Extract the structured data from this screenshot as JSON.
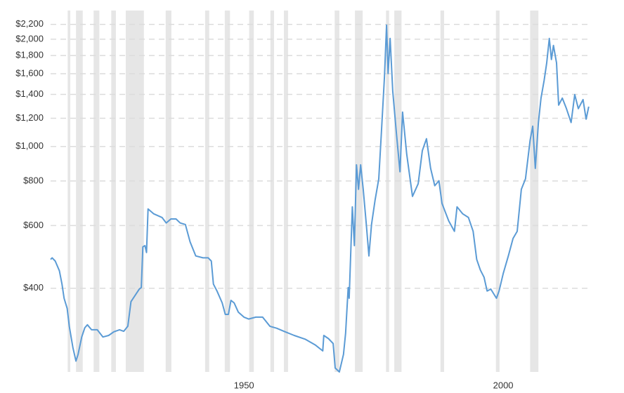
{
  "chart_data": {
    "type": "line",
    "log_scale_y": true,
    "grid": true,
    "color": "#5b9bd5",
    "recession_color": "#e6e6e6",
    "xlim": [
      1915.2,
      2019.3
    ],
    "xticks": [
      1950,
      2000
    ],
    "ylim": [
      233,
      2300
    ],
    "yticks": [
      {
        "value": 400,
        "label": "$400"
      },
      {
        "value": 600,
        "label": "$600"
      },
      {
        "value": 800,
        "label": "$800"
      },
      {
        "value": 1000,
        "label": "$1,000"
      },
      {
        "value": 1200,
        "label": "$1,200"
      },
      {
        "value": 1400,
        "label": "$1,400"
      },
      {
        "value": 1600,
        "label": "$1,600"
      },
      {
        "value": 1800,
        "label": "$1,800"
      },
      {
        "value": 2000,
        "label": "$2,000"
      },
      {
        "value": 2200,
        "label": "$2,200"
      }
    ],
    "recessions": [
      [
        1918.5,
        1919.0
      ],
      [
        1920.1,
        1921.4
      ],
      [
        1923.5,
        1924.6
      ],
      [
        1926.9,
        1927.8
      ],
      [
        1929.7,
        1933.2
      ],
      [
        1937.4,
        1938.5
      ],
      [
        1945.0,
        1945.8
      ],
      [
        1948.8,
        1949.8
      ],
      [
        1953.5,
        1954.4
      ],
      [
        1957.6,
        1958.3
      ],
      [
        1960.2,
        1961.0
      ],
      [
        1970.0,
        1970.9
      ],
      [
        1973.9,
        1975.4
      ],
      [
        1979.9,
        1980.5
      ],
      [
        1981.5,
        1982.9
      ],
      [
        1990.4,
        1991.1
      ],
      [
        2001.1,
        2001.8
      ],
      [
        2007.7,
        2009.3
      ]
    ],
    "x": [
      1915.2,
      1915.5,
      1916.1,
      1916.9,
      1917.4,
      1917.8,
      1918.4,
      1918.8,
      1919.5,
      1920.1,
      1920.5,
      1921.2,
      1921.8,
      1922.3,
      1923.1,
      1924.2,
      1925.3,
      1926.4,
      1927.4,
      1928.5,
      1929.3,
      1930.1,
      1930.7,
      1931.6,
      1932.3,
      1932.7,
      1933.0,
      1933.4,
      1933.7,
      1934.0,
      1935.1,
      1936.7,
      1937.5,
      1938.4,
      1939.4,
      1940.2,
      1941.2,
      1942.1,
      1943.2,
      1944.6,
      1945.6,
      1946.2,
      1946.6,
      1947.3,
      1948.3,
      1948.9,
      1949.5,
      1950.0,
      1950.6,
      1951.4,
      1952.5,
      1953.4,
      1954.8,
      1956.1,
      1957.5,
      1958.8,
      1960.2,
      1962.2,
      1964.3,
      1966.3,
      1967.7,
      1967.9,
      1968.8,
      1969.7,
      1970.1,
      1970.9,
      1971.7,
      1972.1,
      1972.6,
      1972.8,
      1973.4,
      1973.8,
      1974.2,
      1974.6,
      1975.0,
      1975.5,
      1976.1,
      1976.6,
      1977.1,
      1977.8,
      1978.5,
      1979.0,
      1979.6,
      1980.0,
      1980.3,
      1980.7,
      1981.2,
      1981.9,
      1982.6,
      1983.1,
      1983.9,
      1985.0,
      1986.1,
      1986.9,
      1987.7,
      1988.5,
      1989.3,
      1990.1,
      1990.7,
      1992.0,
      1993.1,
      1993.6,
      1994.7,
      1995.8,
      1996.7,
      1997.4,
      1998.1,
      1998.8,
      1999.4,
      2000.1,
      2001.2,
      2001.7,
      2002.5,
      2003.5,
      2004.4,
      2005.2,
      2006.0,
      2006.8,
      2007.7,
      2008.2,
      2008.7,
      2009.3,
      2009.8,
      2010.4,
      2010.9,
      2011.4,
      2011.8,
      2012.2,
      2012.8,
      2013.2,
      2013.9,
      2014.7,
      2015.6,
      2016.3,
      2017.0,
      2017.9,
      2018.5,
      2019.0
    ],
    "values": [
      482,
      487,
      477,
      448,
      411,
      375,
      351,
      313,
      273,
      250,
      261,
      292,
      310,
      316,
      306,
      306,
      292,
      295,
      302,
      306,
      303,
      313,
      367,
      384,
      398,
      402,
      523,
      527,
      504,
      668,
      647,
      632,
      610,
      626,
      626,
      610,
      604,
      540,
      493,
      487,
      487,
      477,
      411,
      393,
      364,
      338,
      338,
      370,
      364,
      343,
      332,
      328,
      332,
      332,
      313,
      309,
      303,
      295,
      288,
      277,
      267,
      295,
      289,
      280,
      239,
      233,
      261,
      299,
      402,
      375,
      677,
      527,
      888,
      758,
      888,
      758,
      604,
      493,
      604,
      708,
      811,
      1090,
      1566,
      2190,
      1602,
      2009,
      1430,
      1090,
      849,
      1249,
      951,
      724,
      786,
      973,
      1051,
      868,
      776,
      801,
      692,
      618,
      578,
      677,
      647,
      632,
      578,
      482,
      450,
      430,
      393,
      398,
      375,
      393,
      440,
      493,
      552,
      578,
      758,
      811,
      1041,
      1140,
      868,
      1167,
      1367,
      1531,
      1715,
      2009,
      1754,
      1920,
      1715,
      1306,
      1367,
      1277,
      1167,
      1398,
      1277,
      1354,
      1193,
      1294
    ]
  }
}
